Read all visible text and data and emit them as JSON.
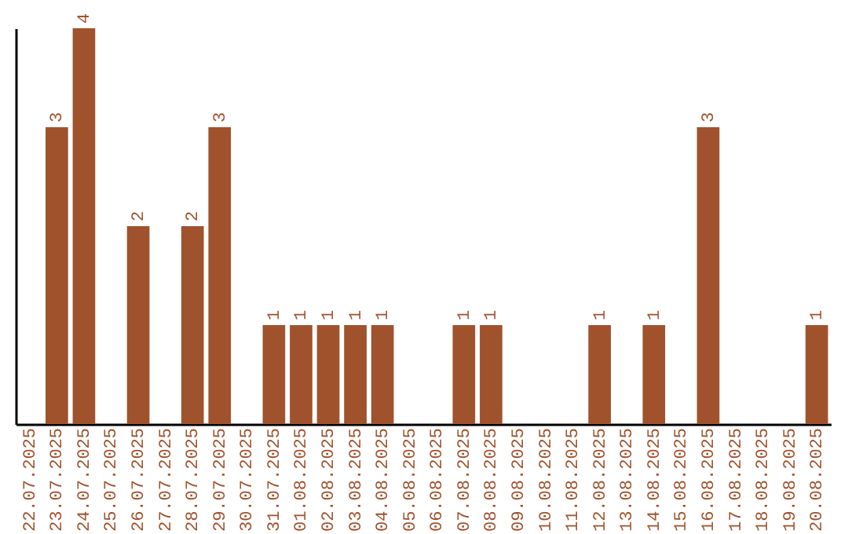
{
  "chart_data": {
    "type": "bar",
    "categories": [
      "22.07.2025",
      "23.07.2025",
      "24.07.2025",
      "25.07.2025",
      "26.07.2025",
      "27.07.2025",
      "28.07.2025",
      "29.07.2025",
      "30.07.2025",
      "31.07.2025",
      "01.08.2025",
      "02.08.2025",
      "03.08.2025",
      "04.08.2025",
      "05.08.2025",
      "06.08.2025",
      "07.08.2025",
      "08.08.2025",
      "09.08.2025",
      "10.08.2025",
      "11.08.2025",
      "12.08.2025",
      "13.08.2025",
      "14.08.2025",
      "15.08.2025",
      "16.08.2025",
      "17.08.2025",
      "18.08.2025",
      "19.08.2025",
      "20.08.2025"
    ],
    "values": [
      0,
      3,
      4,
      0,
      2,
      0,
      2,
      3,
      0,
      1,
      1,
      1,
      1,
      1,
      0,
      0,
      1,
      1,
      0,
      0,
      0,
      1,
      0,
      1,
      0,
      3,
      0,
      0,
      0,
      1
    ],
    "value_labels": [
      null,
      "3",
      "4",
      null,
      "2",
      null,
      "2",
      "3",
      null,
      "1",
      "1",
      "1",
      "1",
      "1",
      null,
      null,
      "1",
      "1",
      null,
      null,
      null,
      "1",
      null,
      "1",
      null,
      "3",
      null,
      null,
      null,
      "1"
    ],
    "color": "#a0522d",
    "grid": false,
    "tick_labels": "x"
  }
}
